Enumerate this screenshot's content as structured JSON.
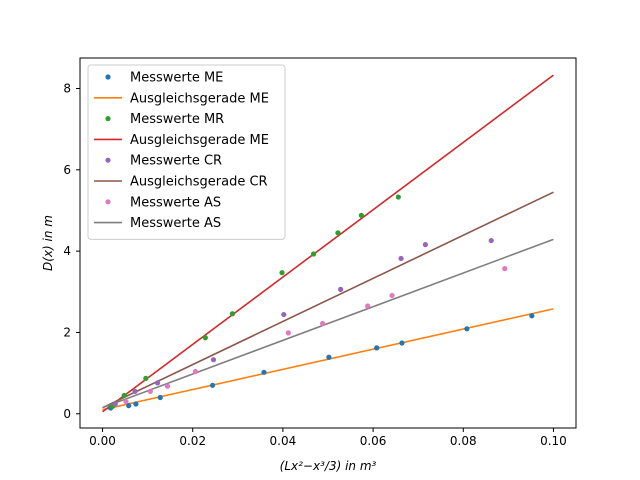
{
  "chart_data": {
    "type": "scatter",
    "xlabel": "(Lx²−x³/3) in m³",
    "ylabel": "D(x) in m",
    "xlim": [
      -0.005,
      0.105
    ],
    "ylim": [
      -0.35,
      8.75
    ],
    "xticks": [
      0.0,
      0.02,
      0.04,
      0.06,
      0.08,
      0.1
    ],
    "xtick_labels": [
      "0.00",
      "0.02",
      "0.04",
      "0.06",
      "0.08",
      "0.10"
    ],
    "yticks": [
      0,
      2,
      4,
      6,
      8
    ],
    "ytick_labels": [
      "0",
      "2",
      "4",
      "6",
      "8"
    ],
    "grid": false,
    "legend_position": "top-left",
    "series": [
      {
        "name": "Messwerte ME",
        "kind": "points",
        "color": "#1f77b4",
        "x": [
          0.0018,
          0.0058,
          0.0074,
          0.0128,
          0.0244,
          0.0358,
          0.0502,
          0.0608,
          0.0664,
          0.0808,
          0.0952
        ],
        "y": [
          0.14,
          0.2,
          0.24,
          0.4,
          0.7,
          1.02,
          1.39,
          1.62,
          1.74,
          2.09,
          2.41
        ]
      },
      {
        "name": "Ausgleichsgerade ME",
        "kind": "line",
        "color": "#ff7f0e",
        "x": [
          0.0,
          0.1
        ],
        "y": [
          0.1,
          2.58
        ]
      },
      {
        "name": "Messwerte MR",
        "kind": "points",
        "color": "#2ca02c",
        "x": [
          0.0022,
          0.0048,
          0.0096,
          0.0228,
          0.0288,
          0.0398,
          0.0468,
          0.0522,
          0.0574,
          0.0656
        ],
        "y": [
          0.18,
          0.45,
          0.87,
          1.87,
          2.46,
          3.47,
          3.93,
          4.45,
          4.88,
          5.33
        ]
      },
      {
        "name": "Ausgleichsgerade ME",
        "kind": "line",
        "color": "#d62728",
        "x": [
          0.0,
          0.1
        ],
        "y": [
          0.05,
          8.33
        ]
      },
      {
        "name": "Messwerte CR",
        "kind": "points",
        "color": "#9467bd",
        "x": [
          0.0028,
          0.0072,
          0.0122,
          0.0246,
          0.0402,
          0.0528,
          0.0662,
          0.0716,
          0.0862
        ],
        "y": [
          0.24,
          0.55,
          0.76,
          1.33,
          2.44,
          3.06,
          3.82,
          4.16,
          4.26
        ]
      },
      {
        "name": "Ausgleichsgerade CR",
        "kind": "line",
        "color": "#8c564b",
        "x": [
          0.0,
          0.1
        ],
        "y": [
          0.15,
          5.45
        ]
      },
      {
        "name": "Messwerte AS",
        "kind": "points",
        "color": "#e377c2",
        "x": [
          0.0052,
          0.0106,
          0.0144,
          0.0206,
          0.0412,
          0.0488,
          0.0588,
          0.0642,
          0.0892
        ],
        "y": [
          0.3,
          0.55,
          0.68,
          1.04,
          1.99,
          2.22,
          2.65,
          2.91,
          3.57
        ]
      },
      {
        "name": "Messwerte AS",
        "kind": "line",
        "color": "#7f7f7f",
        "x": [
          0.0,
          0.1
        ],
        "y": [
          0.15,
          4.29
        ]
      }
    ]
  }
}
